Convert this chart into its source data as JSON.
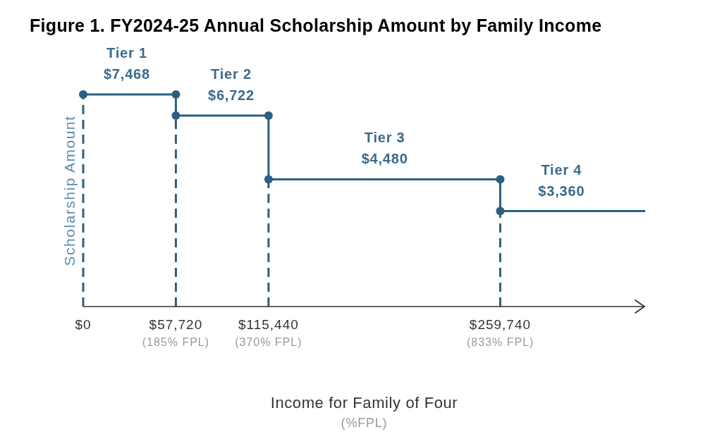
{
  "chart_data": {
    "type": "line",
    "title": "Figure 1. FY2024-25 Annual Scholarship Amount by Family Income",
    "xlabel": "Income for Family of Four\n(%FPL)",
    "ylabel": "Scholarship Amount",
    "x": [
      0,
      27200,
      57720,
      57720,
      92200,
      115440,
      115440,
      187800,
      259740,
      259740,
      297900,
      350000
    ],
    "values": [
      7468,
      7468,
      7468,
      6722,
      6722,
      6722,
      4480,
      4480,
      4480,
      3360,
      3360,
      3360
    ],
    "value_labels": [
      null,
      "$7,468",
      null,
      null,
      "$6,722",
      null,
      null,
      "$4,480",
      null,
      null,
      "$3,360",
      null
    ],
    "color": "#2d5f80",
    "marker": "circle",
    "annotations": [
      {
        "text": "Tier 1",
        "x": 27200,
        "y": 7468
      },
      {
        "text": "Tier 2",
        "x": 92200,
        "y": 6722
      },
      {
        "text": "Tier 3",
        "x": 187800,
        "y": 4480
      },
      {
        "text": "Tier 4",
        "x": 297900,
        "y": 3360
      }
    ],
    "xlim": [
      0,
      350000
    ],
    "xticks": [
      {
        "value": 0,
        "label": "$0"
      },
      {
        "value": 57720,
        "label": "$57,720"
      },
      {
        "value": 115440,
        "label": "$115,440"
      },
      {
        "value": 259740,
        "label": "$259,740"
      }
    ],
    "x2lim": [
      0,
      1122
    ],
    "x2ticks": [
      {
        "value": 185,
        "label": "(185% FPL)"
      },
      {
        "value": 370,
        "label": "(370% FPL)"
      },
      {
        "value": 833,
        "label": "(833% FPL)"
      }
    ],
    "ylim": [
      0,
      7468
    ],
    "tick_labels": "x",
    "ref_lines": [
      {
        "axis": "x",
        "value": 0,
        "color": "#2d5f80",
        "line_style": "dashed"
      },
      {
        "axis": "x",
        "value": 57720,
        "color": "#2d5f80",
        "line_style": "dashed"
      },
      {
        "axis": "x",
        "value": 115440,
        "color": "#2d5f80",
        "line_style": "dashed"
      },
      {
        "axis": "x",
        "value": 259740,
        "color": "#2d5f80",
        "line_style": "dashed"
      }
    ]
  }
}
